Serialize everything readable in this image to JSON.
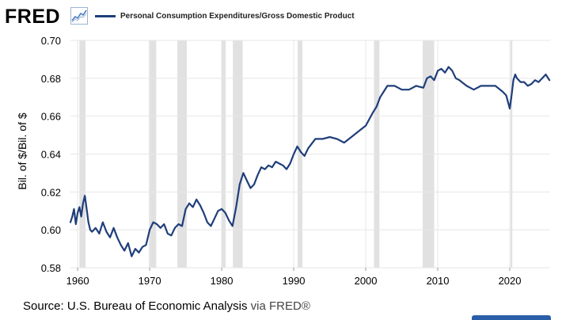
{
  "header": {
    "logo_text": "FRED",
    "logo_icon": "line-chart-icon"
  },
  "colors": {
    "series": "#1f3e7a",
    "recession": "#e1e1e1",
    "grid": "#e6e6e6",
    "axis_text": "#000000"
  },
  "source": {
    "text": "Source: U.S. Bureau of Economic Analysis",
    "via": "via FRED®"
  },
  "chart_data": {
    "type": "line",
    "title": "",
    "xlabel": "",
    "ylabel": "Bil. of $/Bil. of $",
    "xlim": [
      1959.0,
      2025.6
    ],
    "ylim": [
      0.58,
      0.7
    ],
    "yticks": [
      "0.58",
      "0.60",
      "0.62",
      "0.64",
      "0.66",
      "0.68",
      "0.70"
    ],
    "xticks": [
      "1960",
      "1970",
      "1980",
      "1990",
      "2000",
      "2010",
      "2020"
    ],
    "grid": true,
    "legend": "top-left",
    "recessions": [
      [
        1960.25,
        1961.1
      ],
      [
        1969.9,
        1970.9
      ],
      [
        1973.85,
        1975.15
      ],
      [
        1980.0,
        1980.55
      ],
      [
        1981.55,
        1982.9
      ],
      [
        1990.55,
        1991.2
      ],
      [
        2001.15,
        2001.9
      ],
      [
        2007.9,
        2009.5
      ],
      [
        2020.1,
        2020.35
      ]
    ],
    "series": [
      {
        "name": "Personal Consumption Expenditures/Gross Domestic Product",
        "x": [
          1959.0,
          1959.25,
          1959.5,
          1959.75,
          1960.0,
          1960.25,
          1960.5,
          1960.75,
          1961.0,
          1961.25,
          1961.5,
          1961.75,
          1962.0,
          1962.5,
          1963.0,
          1963.5,
          1964.0,
          1964.5,
          1965.0,
          1965.5,
          1966.0,
          1966.5,
          1967.0,
          1967.5,
          1968.0,
          1968.5,
          1969.0,
          1969.5,
          1970.0,
          1970.5,
          1971.0,
          1971.5,
          1972.0,
          1972.5,
          1973.0,
          1973.5,
          1974.0,
          1974.5,
          1975.0,
          1975.5,
          1976.0,
          1976.5,
          1977.0,
          1977.5,
          1978.0,
          1978.5,
          1979.0,
          1979.5,
          1980.0,
          1980.5,
          1981.0,
          1981.5,
          1982.0,
          1982.5,
          1983.0,
          1983.5,
          1984.0,
          1984.5,
          1985.0,
          1985.5,
          1986.0,
          1986.5,
          1987.0,
          1987.5,
          1988.0,
          1988.5,
          1989.0,
          1989.5,
          1990.0,
          1990.5,
          1991.0,
          1991.5,
          1992.0,
          1993.0,
          1994.0,
          1995.0,
          1996.0,
          1997.0,
          1998.0,
          1999.0,
          2000.0,
          2001.0,
          2001.5,
          2002.0,
          2002.5,
          2003.0,
          2004.0,
          2005.0,
          2006.0,
          2007.0,
          2008.0,
          2008.5,
          2009.0,
          2009.5,
          2010.0,
          2010.5,
          2011.0,
          2011.5,
          2012.0,
          2012.5,
          2013.0,
          2014.0,
          2015.0,
          2016.0,
          2017.0,
          2018.0,
          2019.0,
          2019.5,
          2020.0,
          2020.25,
          2020.5,
          2020.75,
          2021.0,
          2021.25,
          2021.5,
          2022.0,
          2022.5,
          2023.0,
          2023.5,
          2024.0,
          2024.5,
          2025.0,
          2025.5
        ],
        "values": [
          0.604,
          0.607,
          0.611,
          0.603,
          0.609,
          0.612,
          0.607,
          0.614,
          0.618,
          0.611,
          0.604,
          0.6,
          0.599,
          0.601,
          0.598,
          0.604,
          0.599,
          0.596,
          0.601,
          0.596,
          0.592,
          0.589,
          0.593,
          0.586,
          0.59,
          0.588,
          0.591,
          0.592,
          0.6,
          0.604,
          0.603,
          0.601,
          0.603,
          0.598,
          0.597,
          0.601,
          0.603,
          0.602,
          0.611,
          0.614,
          0.612,
          0.616,
          0.613,
          0.609,
          0.604,
          0.602,
          0.606,
          0.61,
          0.611,
          0.609,
          0.605,
          0.602,
          0.612,
          0.624,
          0.63,
          0.626,
          0.622,
          0.624,
          0.629,
          0.633,
          0.632,
          0.634,
          0.633,
          0.636,
          0.635,
          0.634,
          0.632,
          0.635,
          0.64,
          0.644,
          0.641,
          0.639,
          0.643,
          0.648,
          0.648,
          0.649,
          0.648,
          0.646,
          0.649,
          0.652,
          0.655,
          0.662,
          0.665,
          0.67,
          0.673,
          0.676,
          0.676,
          0.674,
          0.674,
          0.676,
          0.675,
          0.68,
          0.681,
          0.679,
          0.684,
          0.685,
          0.683,
          0.686,
          0.684,
          0.68,
          0.679,
          0.676,
          0.674,
          0.676,
          0.676,
          0.676,
          0.673,
          0.671,
          0.664,
          0.671,
          0.679,
          0.682,
          0.68,
          0.679,
          0.678,
          0.678,
          0.676,
          0.677,
          0.679,
          0.678,
          0.68,
          0.682,
          0.679
        ]
      }
    ]
  }
}
